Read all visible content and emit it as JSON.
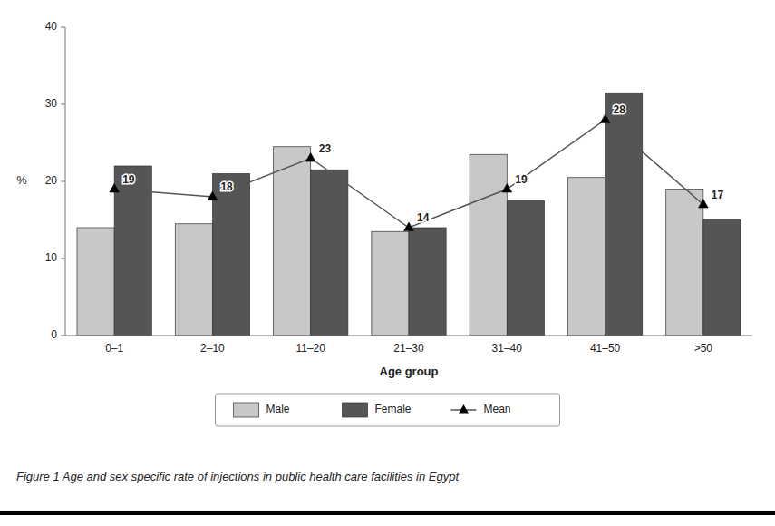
{
  "chart_data": {
    "type": "bar",
    "caption": "Figure 1 Age and sex specific rate of injections in public health care facilities in Egypt",
    "xlabel": "Age group",
    "ylabel": "%",
    "categories": [
      "0–1",
      "2–10",
      "11–20",
      "21–30",
      "31–40",
      "41–50",
      ">50"
    ],
    "series": [
      {
        "name": "Male",
        "type": "bar",
        "color": "#c8c8c8",
        "values": [
          14,
          14.5,
          24.5,
          13.5,
          23.5,
          20.5,
          19
        ]
      },
      {
        "name": "Female",
        "type": "bar",
        "color": "#555555",
        "values": [
          22,
          21,
          21.5,
          14,
          17.5,
          31.5,
          15
        ]
      },
      {
        "name": "Mean",
        "type": "line",
        "color": "#555555",
        "marker": "triangle",
        "data_labels": true,
        "values": [
          19,
          18,
          23,
          14,
          19,
          28,
          17
        ]
      }
    ],
    "ylim": [
      0,
      40
    ],
    "yticks": [
      0,
      10,
      20,
      30,
      40
    ],
    "grid": false,
    "legend": "bottom"
  }
}
